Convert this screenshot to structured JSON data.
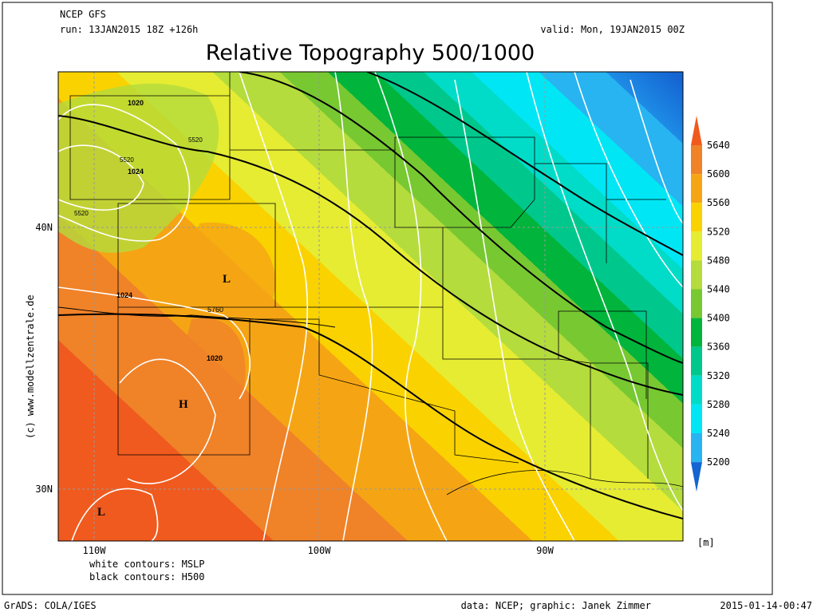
{
  "header": {
    "model": "NCEP GFS",
    "run": "run: 13JAN2015 18Z +126h",
    "valid": "valid: Mon, 19JAN2015 00Z",
    "title": "Relative Topography 500/1000"
  },
  "axes": {
    "x_labels": [
      "110W",
      "100W",
      "90W"
    ],
    "y_labels": [
      "40N",
      "30N"
    ]
  },
  "map_labels": [
    "1020",
    "5520",
    "1024",
    "5520",
    "5520",
    "1024",
    "L",
    "5760",
    "1020",
    "H",
    "L"
  ],
  "colorbar": {
    "levels": [
      5640,
      5600,
      5560,
      5520,
      5480,
      5440,
      5400,
      5360,
      5320,
      5280,
      5240,
      5200
    ],
    "colors": [
      "#f05a1e",
      "#f08228",
      "#f5a514",
      "#fad200",
      "#e6ec32",
      "#b4dc3c",
      "#78c832",
      "#00b43c",
      "#00c88c",
      "#00dcc8",
      "#00e6f5",
      "#28b4f0",
      "#1e8ce6",
      "#1464d2"
    ],
    "unit": "[m]"
  },
  "legend": [
    "white contours: MSLP",
    "black contours: H500"
  ],
  "credit": "(c) www.modellzentrale.de",
  "footer": {
    "left": "GrADS: COLA/IGES",
    "center": "data: NCEP; graphic: Janek Zimmer",
    "right": "2015-01-14-00:47"
  }
}
